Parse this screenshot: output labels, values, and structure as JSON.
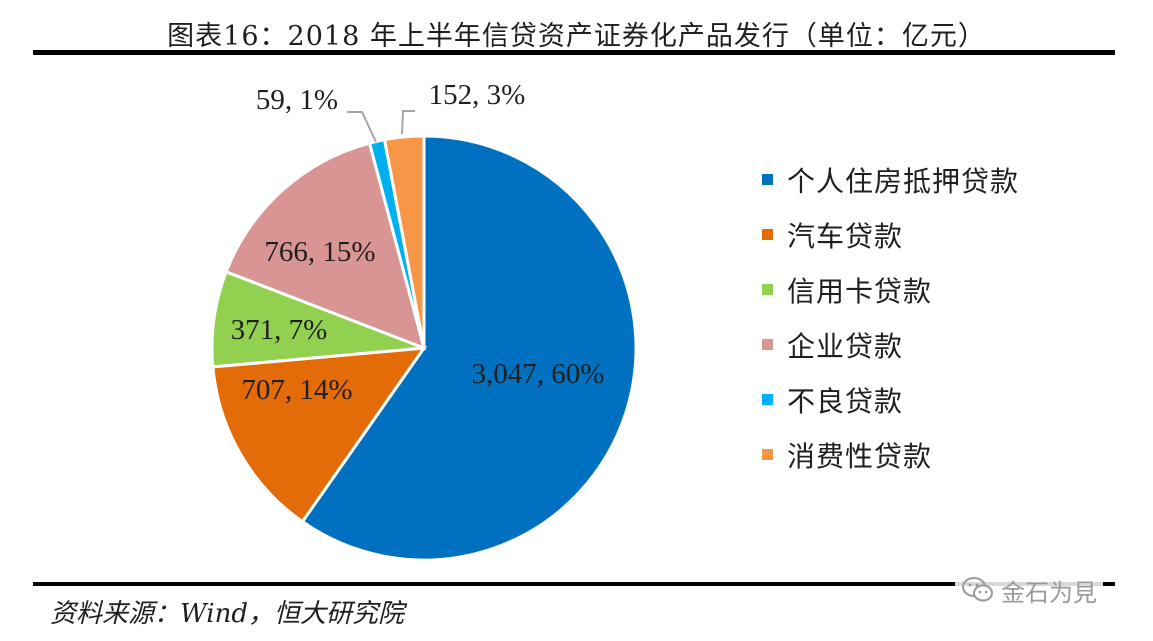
{
  "title": "图表16：2018 年上半年信贷资产证券化产品发行（单位：亿元）",
  "source": "资料来源：Wind，恒大研究院",
  "watermark": {
    "icon": "wechat-icon",
    "text": "金石为見"
  },
  "chart_data": {
    "type": "pie",
    "title": "图表16：2018 年上半年信贷资产证券化产品发行（单位：亿元）",
    "start": "12 o'clock",
    "direction": "clockwise",
    "legend_position": "right",
    "slices": [
      {
        "name": "个人住房抵押贷款",
        "value": 3047,
        "percent": 60,
        "label": "3,047, 60%",
        "color": "#0070C0"
      },
      {
        "name": "汽车贷款",
        "value": 707,
        "percent": 14,
        "label": "707, 14%",
        "color": "#E36C09"
      },
      {
        "name": "信用卡贷款",
        "value": 371,
        "percent": 7,
        "label": "371, 7%",
        "color": "#92D050"
      },
      {
        "name": "企业贷款",
        "value": 766,
        "percent": 15,
        "label": "766, 15%",
        "color": "#D99594"
      },
      {
        "name": "不良贷款",
        "value": 59,
        "percent": 1,
        "label": "59, 1%",
        "color": "#00B0F0"
      },
      {
        "name": "消费性贷款",
        "value": 152,
        "percent": 3,
        "label": "152, 3%",
        "color": "#F79646"
      }
    ]
  }
}
